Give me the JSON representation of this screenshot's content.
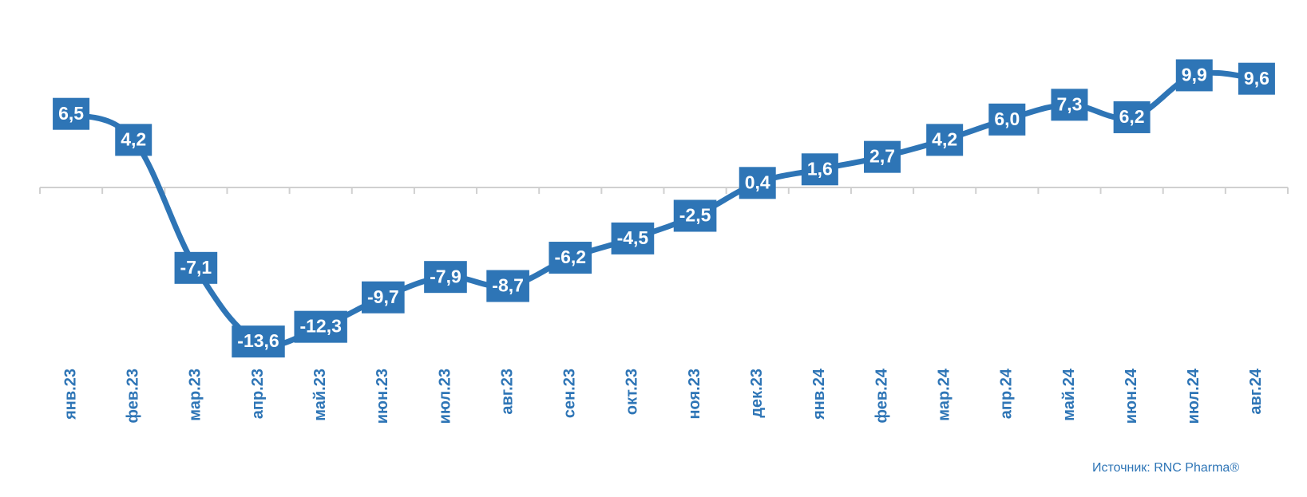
{
  "chart_data": {
    "type": "line",
    "categories": [
      "янв.23",
      "фев.23",
      "мар.23",
      "апр.23",
      "май.23",
      "июн.23",
      "июл.23",
      "авг.23",
      "сен.23",
      "окт.23",
      "ноя.23",
      "дек.23",
      "янв.24",
      "фев.24",
      "мар.24",
      "апр.24",
      "май.24",
      "июн.24",
      "июл.24",
      "авг.24"
    ],
    "values": [
      6.5,
      4.2,
      -7.1,
      -13.6,
      -12.3,
      -9.7,
      -7.9,
      -8.7,
      -6.2,
      -4.5,
      -2.5,
      0.4,
      1.6,
      2.7,
      4.2,
      6.0,
      7.3,
      6.2,
      9.9,
      9.6
    ],
    "value_labels": [
      "6,5",
      "4,2",
      "-7,1",
      "-13,6",
      "-12,3",
      "-9,7",
      "-7,9",
      "-8,7",
      "-6,2",
      "-4,5",
      "-2,5",
      "0,4",
      "1,6",
      "2,7",
      "4,2",
      "6,0",
      "7,3",
      "6,2",
      "9,9",
      "9,6"
    ],
    "color": "#2e75b6",
    "source": "Источник: RNC Pharma®"
  }
}
